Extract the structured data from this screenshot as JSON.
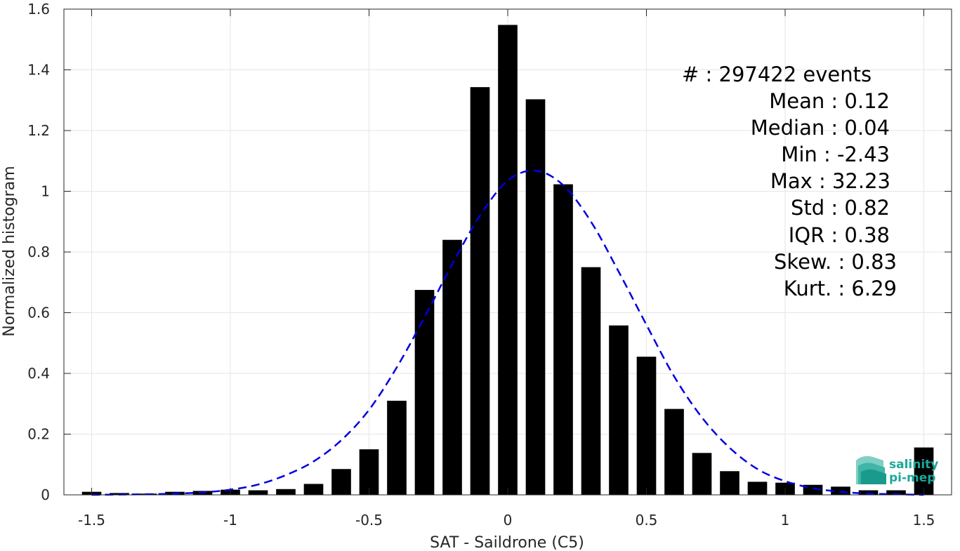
{
  "chart_data": {
    "type": "bar",
    "xlabel": "SAT - Saildrone (C5)",
    "ylabel": "Normalized histogram",
    "xlim": [
      -1.6,
      1.6
    ],
    "ylim": [
      0,
      1.6
    ],
    "xticks": [
      -1.5,
      -1,
      -0.5,
      0,
      0.5,
      1,
      1.5
    ],
    "xtick_labels": [
      "-1.5",
      "-1",
      "-0.5",
      "0",
      "0.5",
      "1",
      "1.5"
    ],
    "yticks": [
      0,
      0.2,
      0.4,
      0.6,
      0.8,
      1,
      1.2,
      1.4,
      1.6
    ],
    "ytick_labels": [
      "0",
      "0.2",
      "0.4",
      "0.6",
      "0.8",
      "1",
      "1.2",
      "1.4",
      "1.6"
    ],
    "grid": true,
    "bar_width": 0.07,
    "x": [
      -1.5,
      -1.4,
      -1.3,
      -1.2,
      -1.1,
      -1.0,
      -0.9,
      -0.8,
      -0.7,
      -0.6,
      -0.5,
      -0.4,
      -0.3,
      -0.2,
      -0.1,
      0.0,
      0.1,
      0.2,
      0.3,
      0.4,
      0.5,
      0.6,
      0.7,
      0.8,
      0.9,
      1.0,
      1.1,
      1.2,
      1.3,
      1.4,
      1.5
    ],
    "values": [
      0.01,
      0.006,
      0.004,
      0.01,
      0.013,
      0.017,
      0.015,
      0.019,
      0.036,
      0.085,
      0.15,
      0.31,
      0.675,
      0.84,
      1.343,
      1.548,
      1.303,
      1.023,
      0.75,
      0.558,
      0.455,
      0.283,
      0.138,
      0.078,
      0.043,
      0.04,
      0.033,
      0.027,
      0.015,
      0.015,
      0.156
    ],
    "bar_color": "#000000",
    "fit_curve": {
      "style": "dashed",
      "color": "#0000e0",
      "x": [
        -1.5,
        -1.4,
        -1.3,
        -1.2,
        -1.1,
        -1.0,
        -0.9,
        -0.8,
        -0.7,
        -0.6,
        -0.5,
        -0.4,
        -0.3,
        -0.2,
        -0.1,
        0.0,
        0.1,
        0.2,
        0.3,
        0.4,
        0.5,
        0.6,
        0.7,
        0.8,
        0.9,
        1.0,
        1.1,
        1.2,
        1.3,
        1.4,
        1.5
      ],
      "y": [
        0.0,
        0.001,
        0.002,
        0.004,
        0.008,
        0.017,
        0.034,
        0.065,
        0.11,
        0.18,
        0.28,
        0.42,
        0.585,
        0.76,
        0.92,
        1.035,
        1.068,
        1.02,
        0.9,
        0.735,
        0.56,
        0.39,
        0.255,
        0.155,
        0.085,
        0.045,
        0.022,
        0.01,
        0.004,
        0.002,
        0.0
      ]
    },
    "annotations": [
      "#  : 297422 events",
      "Mean : 0.12",
      "Median : 0.04",
      "Min : -2.43",
      "Max : 32.23",
      "Std : 0.82",
      "IQR : 0.38",
      "Skew. : 0.83",
      "Kurt. : 6.29"
    ]
  },
  "logo": {
    "line1": "salinity",
    "line2": "pi-mep",
    "color": "#1aa89a"
  }
}
